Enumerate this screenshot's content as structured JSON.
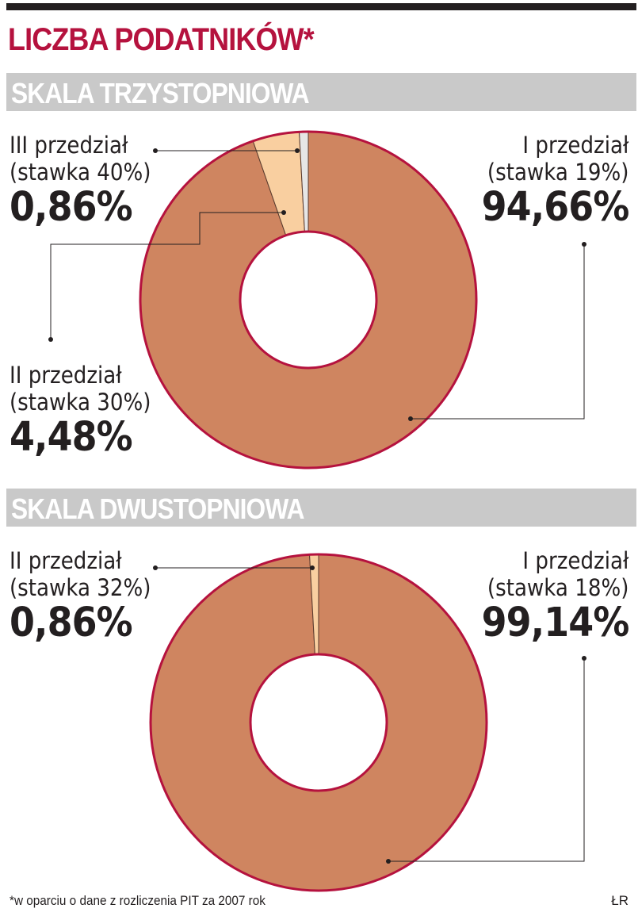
{
  "title": "LICZBA PODATNIKÓW*",
  "footnote": "*w oparciu o dane z rozliczenia PIT za 2007 rok",
  "author": "ŁR",
  "colors": {
    "title": "#b5123e",
    "ring_outline": "#b5123e",
    "bracket_1": "#cf8560",
    "bracket_2": "#f9cfa0",
    "bracket_3": "#e6e6e6",
    "section_band": "#c9c9c9"
  },
  "chart_data": [
    {
      "type": "pie",
      "variant": "donut",
      "title": "SKALA TRZYSTOPNIOWA",
      "slices": [
        {
          "rate_label": "(stawka 19%)",
          "bracket": "I przedział",
          "value": 94.66,
          "value_label": "94,66%"
        },
        {
          "rate_label": "(stawka 30%)",
          "bracket": "II przedział",
          "value": 4.48,
          "value_label": "4,48%"
        },
        {
          "rate_label": "(stawka 40%)",
          "bracket": "III przedział",
          "value": 0.86,
          "value_label": "0,86%"
        }
      ]
    },
    {
      "type": "pie",
      "variant": "donut",
      "title": "SKALA DWUSTOPNIOWA",
      "slices": [
        {
          "rate_label": "(stawka 18%)",
          "bracket": "I przedział",
          "value": 99.14,
          "value_label": "99,14%"
        },
        {
          "rate_label": "(stawka 32%)",
          "bracket": "II przedział",
          "value": 0.86,
          "value_label": "0,86%"
        }
      ]
    }
  ]
}
